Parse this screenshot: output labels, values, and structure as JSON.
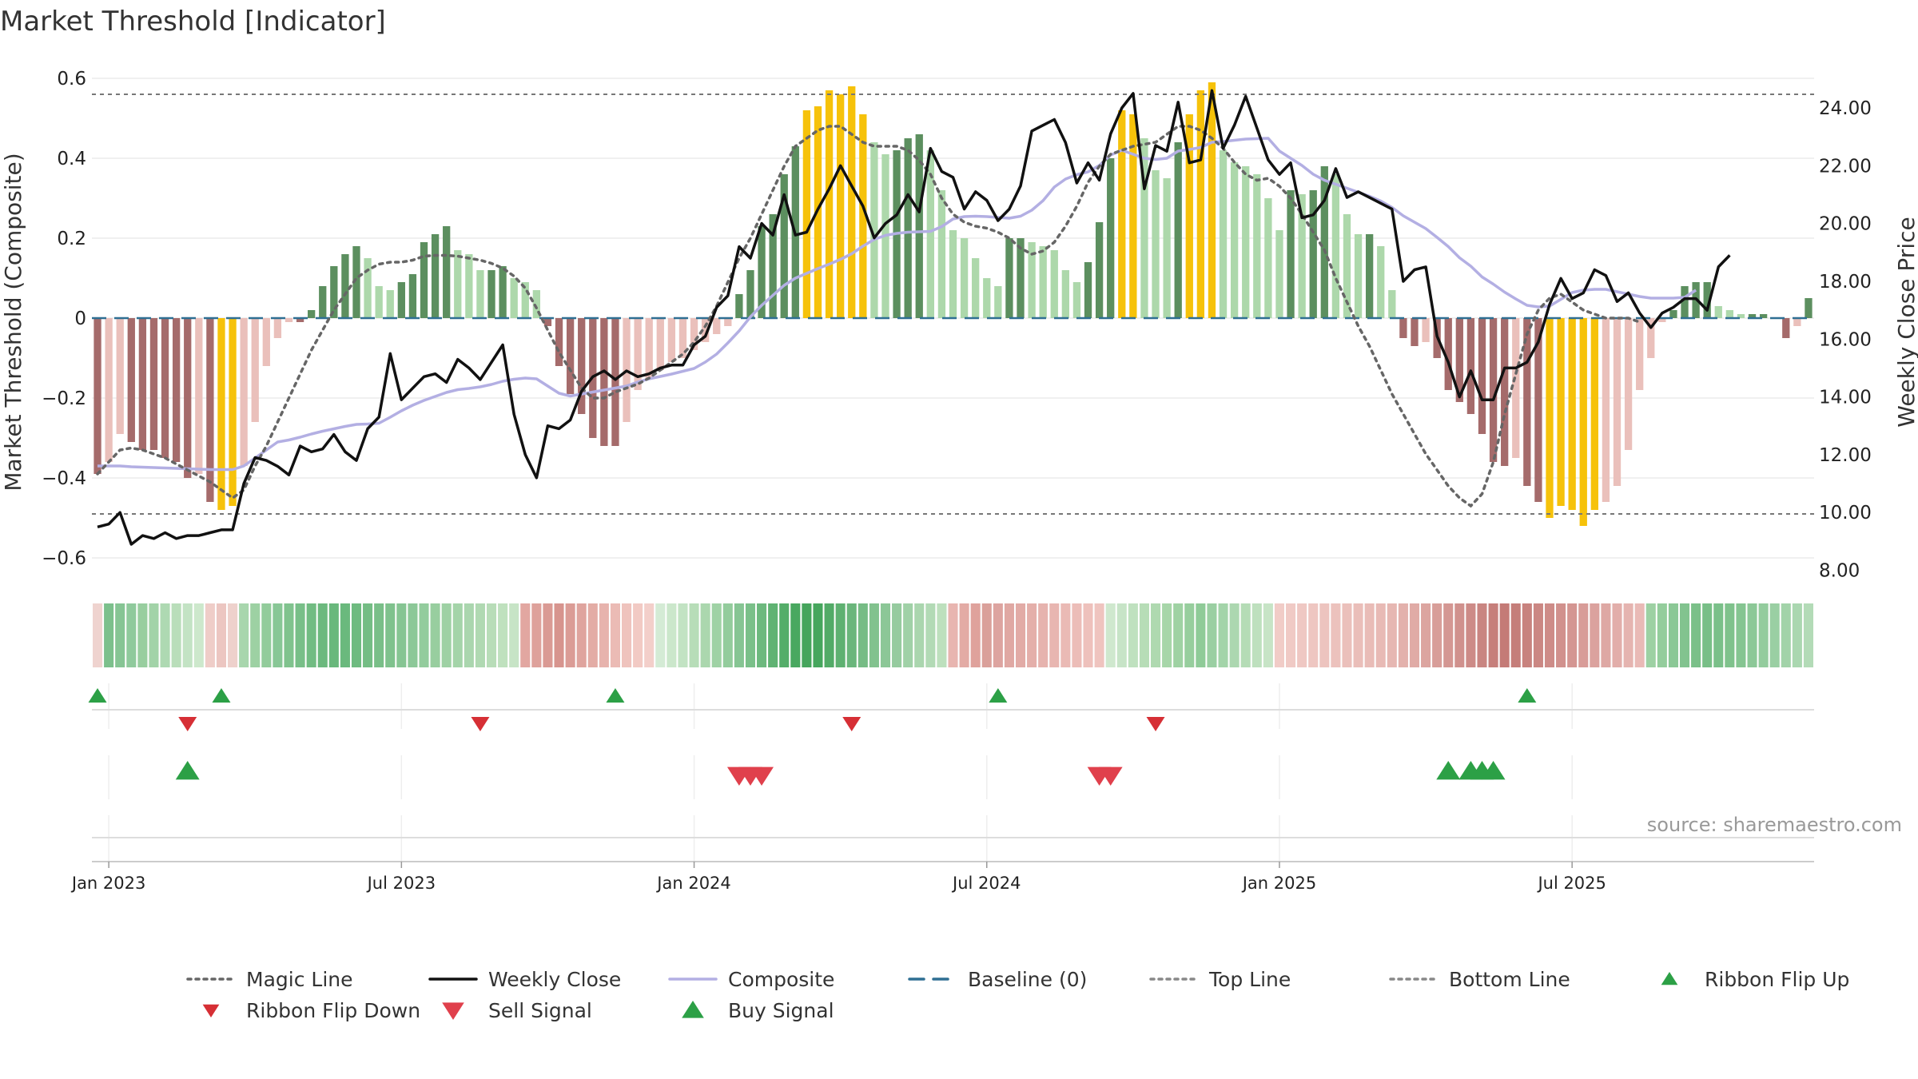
{
  "chart_data": {
    "type": "bar",
    "title": "Market Threshold [Indicator]",
    "source": "source: sharemaestro.com",
    "y_left": {
      "label": "Market Threshold (Composite)",
      "range": [
        -0.66,
        0.62
      ],
      "ticks": [
        {
          "v": 0.6,
          "t": "0.6"
        },
        {
          "v": 0.4,
          "t": "0.4"
        },
        {
          "v": 0.2,
          "t": "0.2"
        },
        {
          "v": 0,
          "t": "0"
        },
        {
          "v": -0.2,
          "t": "−0.2"
        },
        {
          "v": -0.4,
          "t": "−0.4"
        },
        {
          "v": -0.6,
          "t": "−0.6"
        }
      ]
    },
    "y_right": {
      "label": "Weekly Close Price",
      "range": [
        7.6,
        25.3
      ],
      "ticks": [
        {
          "v": 24,
          "t": "24.00"
        },
        {
          "v": 22,
          "t": "22.00"
        },
        {
          "v": 20,
          "t": "20.00"
        },
        {
          "v": 18,
          "t": "18.00"
        },
        {
          "v": 16,
          "t": "16.00"
        },
        {
          "v": 14,
          "t": "14.00"
        },
        {
          "v": 12,
          "t": "12.00"
        },
        {
          "v": 10,
          "t": "10.00"
        },
        {
          "v": 8,
          "t": "8.00"
        }
      ]
    },
    "x_ticks": [
      {
        "i": 1.5,
        "t": "Jan 2023"
      },
      {
        "i": 27.5,
        "t": "Jul 2023"
      },
      {
        "i": 53.5,
        "t": "Jan 2024"
      },
      {
        "i": 79.5,
        "t": "Jul 2024"
      },
      {
        "i": 105.5,
        "t": "Jan 2025"
      },
      {
        "i": 131.5,
        "t": "Jul 2025"
      }
    ],
    "top_line": 0.56,
    "bottom_line": -0.49,
    "composite_bars": [
      -0.39,
      -0.36,
      -0.29,
      -0.31,
      -0.33,
      -0.33,
      -0.35,
      -0.36,
      -0.4,
      -0.39,
      -0.46,
      -0.48,
      -0.47,
      -0.37,
      -0.26,
      -0.12,
      -0.05,
      -0.01,
      -0.01,
      0.02,
      0.08,
      0.13,
      0.16,
      0.18,
      0.15,
      0.08,
      0.07,
      0.09,
      0.11,
      0.19,
      0.21,
      0.23,
      0.17,
      0.16,
      0.12,
      0.12,
      0.13,
      0.1,
      0.09,
      0.07,
      -0.02,
      -0.12,
      -0.19,
      -0.24,
      -0.3,
      -0.32,
      -0.32,
      -0.26,
      -0.18,
      -0.15,
      -0.13,
      -0.11,
      -0.1,
      -0.08,
      -0.06,
      -0.04,
      -0.02,
      0.06,
      0.12,
      0.23,
      0.26,
      0.36,
      0.43,
      0.52,
      0.53,
      0.57,
      0.56,
      0.58,
      0.51,
      0.44,
      0.41,
      0.42,
      0.45,
      0.46,
      0.42,
      0.32,
      0.22,
      0.2,
      0.15,
      0.1,
      0.08,
      0.2,
      0.2,
      0.19,
      0.18,
      0.17,
      0.12,
      0.09,
      0.14,
      0.24,
      0.4,
      0.52,
      0.51,
      0.45,
      0.37,
      0.35,
      0.44,
      0.51,
      0.57,
      0.59,
      0.42,
      0.39,
      0.38,
      0.36,
      0.3,
      0.22,
      0.32,
      0.31,
      0.32,
      0.38,
      0.36,
      0.26,
      0.21,
      0.21,
      0.18,
      0.07,
      -0.05,
      -0.07,
      -0.06,
      -0.1,
      -0.18,
      -0.21,
      -0.24,
      -0.29,
      -0.36,
      -0.37,
      -0.35,
      -0.42,
      -0.46,
      -0.5,
      -0.47,
      -0.48,
      -0.52,
      -0.48,
      -0.46,
      -0.42,
      -0.33,
      -0.18,
      -0.1,
      -0.01,
      0.02,
      0.08,
      0.09,
      0.09,
      0.03,
      0.02,
      0.01,
      0.01,
      0.01,
      0.0,
      -0.05,
      -0.02,
      0.05
    ],
    "weekly_close": [
      9.5,
      9.6,
      10.0,
      8.9,
      9.2,
      9.1,
      9.3,
      9.1,
      9.2,
      9.2,
      9.3,
      9.4,
      9.4,
      11.0,
      11.9,
      11.8,
      11.6,
      11.3,
      12.3,
      12.1,
      12.2,
      12.7,
      12.1,
      11.8,
      12.9,
      13.3,
      15.5,
      13.9,
      14.3,
      14.7,
      14.8,
      14.5,
      15.3,
      15.0,
      14.6,
      15.2,
      15.8,
      13.4,
      12.0,
      11.2,
      13.0,
      12.9,
      13.2,
      14.2,
      14.7,
      14.9,
      14.6,
      14.9,
      14.7,
      14.8,
      15.0,
      15.1,
      15.1,
      15.8,
      16.1,
      17.1,
      17.5,
      19.2,
      18.8,
      20.0,
      19.6,
      21.0,
      19.6,
      19.7,
      20.5,
      21.2,
      22.0,
      21.3,
      20.6,
      19.5,
      20.0,
      20.3,
      21.0,
      20.4,
      22.6,
      21.8,
      21.6,
      20.5,
      21.1,
      20.8,
      20.1,
      20.5,
      21.3,
      23.2,
      23.4,
      23.6,
      22.8,
      21.4,
      22.1,
      21.5,
      23.1,
      24.0,
      24.5,
      21.2,
      22.7,
      22.5,
      24.2,
      22.1,
      22.2,
      24.6,
      22.6,
      23.4,
      24.4,
      23.3,
      22.2,
      21.7,
      22.1,
      20.2,
      20.3,
      20.8,
      21.9,
      20.9,
      21.1,
      20.9,
      20.7,
      20.5,
      18.0,
      18.4,
      18.5,
      16.1,
      15.2,
      14.0,
      14.9,
      13.9,
      13.9,
      15.0,
      15.0,
      15.2,
      15.9,
      17.2,
      18.1,
      17.4,
      17.6,
      18.4,
      18.2,
      17.3,
      17.6,
      16.9,
      16.4,
      16.9,
      17.1,
      17.4,
      17.4,
      17.0,
      18.5,
      18.9
    ],
    "composite_line": [
      -0.37,
      -0.37,
      -0.37,
      -0.372,
      -0.373,
      -0.374,
      -0.375,
      -0.376,
      -0.377,
      -0.378,
      -0.379,
      -0.379,
      -0.379,
      -0.37,
      -0.35,
      -0.33,
      -0.31,
      -0.305,
      -0.298,
      -0.29,
      -0.283,
      -0.277,
      -0.271,
      -0.266,
      -0.265,
      -0.263,
      -0.248,
      -0.232,
      -0.218,
      -0.206,
      -0.196,
      -0.186,
      -0.179,
      -0.176,
      -0.172,
      -0.166,
      -0.158,
      -0.153,
      -0.15,
      -0.152,
      -0.17,
      -0.188,
      -0.195,
      -0.19,
      -0.185,
      -0.18,
      -0.175,
      -0.17,
      -0.16,
      -0.152,
      -0.146,
      -0.14,
      -0.133,
      -0.126,
      -0.11,
      -0.09,
      -0.062,
      -0.032,
      0.003,
      0.032,
      0.057,
      0.082,
      0.1,
      0.112,
      0.124,
      0.135,
      0.147,
      0.161,
      0.18,
      0.197,
      0.207,
      0.212,
      0.215,
      0.216,
      0.217,
      0.229,
      0.248,
      0.254,
      0.255,
      0.254,
      0.252,
      0.25,
      0.255,
      0.27,
      0.294,
      0.328,
      0.348,
      0.359,
      0.366,
      0.382,
      0.408,
      0.42,
      0.41,
      0.4,
      0.397,
      0.4,
      0.418,
      0.422,
      0.427,
      0.44,
      0.442,
      0.445,
      0.448,
      0.449,
      0.45,
      0.418,
      0.4,
      0.382,
      0.36,
      0.345,
      0.335,
      0.325,
      0.315,
      0.305,
      0.293,
      0.277,
      0.256,
      0.24,
      0.224,
      0.202,
      0.179,
      0.151,
      0.13,
      0.103,
      0.085,
      0.065,
      0.048,
      0.032,
      0.028,
      0.03,
      0.047,
      0.064,
      0.07,
      0.072,
      0.072,
      0.066,
      0.06,
      0.054,
      0.05,
      0.05,
      0.05,
      0.052,
      0.07
    ],
    "magic_line": [
      -0.39,
      -0.36,
      -0.33,
      -0.325,
      -0.33,
      -0.34,
      -0.35,
      -0.365,
      -0.38,
      -0.395,
      -0.41,
      -0.43,
      -0.45,
      -0.43,
      -0.37,
      -0.32,
      -0.26,
      -0.2,
      -0.14,
      -0.08,
      -0.03,
      0.02,
      0.06,
      0.1,
      0.12,
      0.135,
      0.14,
      0.14,
      0.145,
      0.155,
      0.157,
      0.157,
      0.155,
      0.15,
      0.145,
      0.137,
      0.125,
      0.105,
      0.075,
      0.025,
      -0.03,
      -0.085,
      -0.13,
      -0.175,
      -0.2,
      -0.2,
      -0.185,
      -0.175,
      -0.165,
      -0.15,
      -0.13,
      -0.11,
      -0.09,
      -0.06,
      -0.02,
      0.03,
      0.09,
      0.15,
      0.2,
      0.26,
      0.32,
      0.38,
      0.43,
      0.45,
      0.47,
      0.48,
      0.48,
      0.46,
      0.44,
      0.43,
      0.43,
      0.43,
      0.42,
      0.395,
      0.36,
      0.3,
      0.26,
      0.24,
      0.23,
      0.225,
      0.215,
      0.2,
      0.175,
      0.16,
      0.168,
      0.19,
      0.23,
      0.28,
      0.34,
      0.38,
      0.41,
      0.42,
      0.43,
      0.435,
      0.44,
      0.46,
      0.48,
      0.48,
      0.47,
      0.45,
      0.425,
      0.39,
      0.36,
      0.345,
      0.35,
      0.33,
      0.3,
      0.26,
      0.215,
      0.17,
      0.1,
      0.04,
      -0.02,
      -0.07,
      -0.13,
      -0.19,
      -0.24,
      -0.29,
      -0.34,
      -0.38,
      -0.42,
      -0.45,
      -0.47,
      -0.44,
      -0.36,
      -0.24,
      -0.14,
      -0.04,
      0.02,
      0.05,
      0.06,
      0.04,
      0.02,
      0.01,
      0.0,
      0.0,
      0.0,
      -0.01
    ],
    "ribbon_colors": [
      "#efd3cf",
      "#7cc08c",
      "#86c594",
      "#8fca9c",
      "#98ce9f",
      "#a2d3a8",
      "#aed9b2",
      "#b9deba",
      "#c3e3c4",
      "#cde8cc",
      "#efcdc8",
      "#ecc6c1",
      "#eed1cc",
      "#a8d6ad",
      "#9dd1a3",
      "#92cc9b",
      "#88c796",
      "#80c38e",
      "#78bf88",
      "#71bc82",
      "#6cb97e",
      "#69b87c",
      "#6ab97d",
      "#6ebb80",
      "#74bd84",
      "#79bf88",
      "#7fc28d",
      "#86c593",
      "#8cc898",
      "#93cc9d",
      "#98ce9f",
      "#9ed1a4",
      "#a4d4a9",
      "#aad6ae",
      "#b0d9b2",
      "#b8ddb8",
      "#bfe1be",
      "#c7e4c6",
      "#e2a7a1",
      "#dea19b",
      "#da9a94",
      "#d7948e",
      "#db9c96",
      "#dfa49e",
      "#e3aca5",
      "#e7b3ad",
      "#ebbbb5",
      "#efc3bd",
      "#f2cac4",
      "#f3cfca",
      "#d4ebd5",
      "#cbe7cb",
      "#c2e3c3",
      "#b7ddb8",
      "#abd7ae",
      "#9fd2a5",
      "#93cc9c",
      "#86c593",
      "#7ac089",
      "#6db97e",
      "#60b373",
      "#54ad69",
      "#49a860",
      "#45a55c",
      "#46a65d",
      "#52ab67",
      "#5eb171",
      "#6ab67b",
      "#76bc85",
      "#82c28e",
      "#8cc797",
      "#96cb9f",
      "#a0d1a7",
      "#aad6ae",
      "#b2dab5",
      "#bde0bd",
      "#e8b5b0",
      "#e3aba5",
      "#dfa29c",
      "#daa09a",
      "#dda4a0",
      "#e0a8a3",
      "#e2aba6",
      "#e4afaa",
      "#e6b3ae",
      "#e8b6b1",
      "#eabab5",
      "#ecbdb8",
      "#eec1bc",
      "#efc4bf",
      "#cfe8ce",
      "#c7e4c7",
      "#bfe1bf",
      "#b7ddb7",
      "#afd9b0",
      "#a7d6a9",
      "#9fd2a3",
      "#97ce9d",
      "#8fcb98",
      "#9acfa2",
      "#a3d4a9",
      "#acd7b0",
      "#b5dcb6",
      "#bee0be",
      "#c7e4c6",
      "#f1ccc7",
      "#f0cac5",
      "#efc8c3",
      "#eec6c1",
      "#edc4bf",
      "#ecc2bd",
      "#ebc0bb",
      "#eabeb9",
      "#e9bcb7",
      "#e8bab5",
      "#e6b7b2",
      "#e3b1ac",
      "#e0aba6",
      "#dca5a0",
      "#d89e99",
      "#d49793",
      "#d0918d",
      "#cd8b87",
      "#c98581",
      "#c67f7b",
      "#c47b77",
      "#c57e7a",
      "#c8827e",
      "#cb8783",
      "#ce8c88",
      "#d1918d",
      "#d49692",
      "#d89c98",
      "#dba29e",
      "#dea8a4",
      "#e2aeaa",
      "#e5b4b0",
      "#e9bab6",
      "#9dd1a3",
      "#94cd9c",
      "#8bc896",
      "#82c38f",
      "#7bc089",
      "#78bf87",
      "#7ac089",
      "#7fc28c",
      "#85c591",
      "#8cc897",
      "#93cc9d",
      "#9acfa3",
      "#a2d3a9",
      "#aad7b0",
      "#b3dbb7"
    ],
    "ribbon_flip_up": [
      0.5,
      11.5,
      46.5,
      80.5,
      127.5
    ],
    "ribbon_flip_down": [
      8.5,
      34.5,
      67.5,
      94.5
    ],
    "buy_signals": [
      8.5,
      120.5,
      122.5,
      123.5,
      124.5
    ],
    "sell_signals": [
      57.5,
      58.5,
      59.5,
      89.5,
      90.5
    ],
    "legend": [
      {
        "label": "Magic Line",
        "type": "line",
        "color": "#666666",
        "dash": "dot"
      },
      {
        "label": "Weekly Close",
        "type": "line",
        "color": "#111111",
        "dash": "solid"
      },
      {
        "label": "Composite",
        "type": "line",
        "color": "#b3afe3",
        "dash": "solid"
      },
      {
        "label": "Baseline (0)",
        "type": "line",
        "color": "#2f6f93",
        "dash": "dash"
      },
      {
        "label": "Top Line",
        "type": "line",
        "color": "#888888",
        "dash": "dot"
      },
      {
        "label": "Bottom Line",
        "type": "line",
        "color": "#888888",
        "dash": "dot"
      },
      {
        "label": "Ribbon Flip Up",
        "type": "tri-up",
        "color": "#2ca046"
      },
      {
        "label": "Ribbon Flip Down",
        "type": "tri-down",
        "color": "#d62f35"
      },
      {
        "label": "Sell Signal",
        "type": "tri-down",
        "color": "#e0404c"
      },
      {
        "label": "Buy Signal",
        "type": "tri-up",
        "color": "#2ca046"
      }
    ],
    "colors": {
      "pos_strong": "#5c8f5f",
      "pos_light": "#add8ab",
      "neg_strong": "#a56b6b",
      "neg_light": "#eac0bb",
      "extreme": "#f6c20a",
      "grid": "#ebebeb"
    }
  }
}
